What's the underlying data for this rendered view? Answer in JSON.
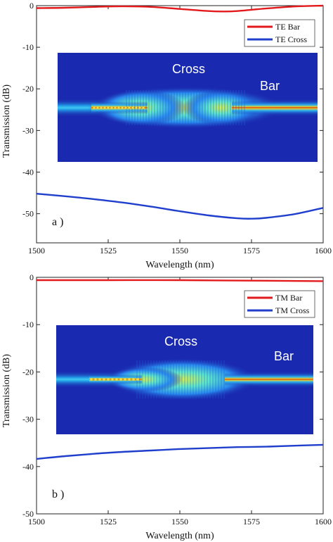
{
  "chart_data": [
    {
      "type": "line",
      "panel": "a",
      "panel_label": "a )",
      "xlabel": "Wavelength (nm)",
      "ylabel": "Transmission (dB)",
      "xlim": [
        1500,
        1600
      ],
      "ylim": [
        -57,
        0
      ],
      "xticks": [
        1500,
        1525,
        1550,
        1575,
        1600
      ],
      "yticks": [
        0,
        -10,
        -20,
        -30,
        -40,
        -50
      ],
      "grid": false,
      "legend_position": "top-right",
      "series": [
        {
          "name": "TE Bar",
          "color": "#e31a1c",
          "x": [
            1500,
            1510,
            1520,
            1530,
            1540,
            1550,
            1560,
            1565,
            1570,
            1580,
            1590,
            1600
          ],
          "y": [
            -0.6,
            -0.5,
            -0.3,
            -0.15,
            -0.3,
            -0.8,
            -1.3,
            -1.4,
            -1.3,
            -0.7,
            -0.2,
            0.0
          ]
        },
        {
          "name": "TE Cross",
          "color": "#1f3fcc",
          "x": [
            1500,
            1510,
            1520,
            1530,
            1540,
            1550,
            1560,
            1570,
            1575,
            1580,
            1590,
            1600
          ],
          "y": [
            -45.2,
            -45.8,
            -46.5,
            -47.3,
            -48.3,
            -49.4,
            -50.4,
            -51.1,
            -51.2,
            -51.0,
            -50.1,
            -48.6
          ]
        }
      ],
      "inset": {
        "labels": [
          "Cross",
          "Bar"
        ]
      }
    },
    {
      "type": "line",
      "panel": "b",
      "panel_label": "b )",
      "xlabel": "Wavelength (nm)",
      "ylabel": "Transmission (dB)",
      "xlim": [
        1500,
        1600
      ],
      "ylim": [
        -50,
        0
      ],
      "xticks": [
        1500,
        1525,
        1550,
        1575,
        1600
      ],
      "yticks": [
        0,
        -10,
        -20,
        -30,
        -40,
        -50
      ],
      "grid": false,
      "legend_position": "top-right",
      "series": [
        {
          "name": "TM Bar",
          "color": "#e31a1c",
          "x": [
            1500,
            1525,
            1550,
            1575,
            1600
          ],
          "y": [
            -0.6,
            -0.6,
            -0.6,
            -0.7,
            -0.8
          ]
        },
        {
          "name": "TM Cross",
          "color": "#1f3fcc",
          "x": [
            1500,
            1510,
            1520,
            1530,
            1540,
            1550,
            1560,
            1570,
            1580,
            1590,
            1600
          ],
          "y": [
            -38.4,
            -37.8,
            -37.3,
            -36.9,
            -36.6,
            -36.3,
            -36.1,
            -35.9,
            -35.8,
            -35.6,
            -35.4
          ]
        }
      ],
      "inset": {
        "labels": [
          "Cross",
          "Bar"
        ]
      }
    }
  ]
}
